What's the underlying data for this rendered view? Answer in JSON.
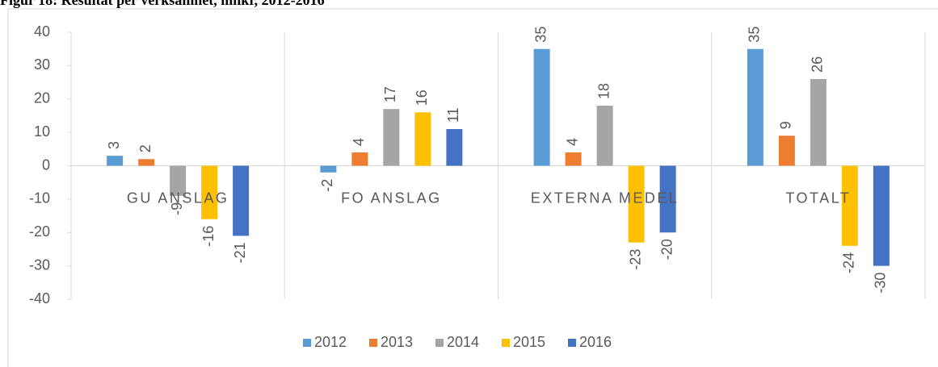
{
  "chart_data": {
    "type": "bar",
    "title": "Figur 18: Resultat per verksamhet, mnkr, 2012-2016",
    "categories": [
      "GU ANSLAG",
      "FO ANSLAG",
      "EXTERNA MEDEL",
      "TOTALT"
    ],
    "series": [
      {
        "name": "2012",
        "color": "#5b9bd5",
        "values": [
          3,
          -2,
          35,
          35
        ]
      },
      {
        "name": "2013",
        "color": "#ed7d31",
        "values": [
          2,
          4,
          4,
          9
        ]
      },
      {
        "name": "2014",
        "color": "#a5a5a5",
        "values": [
          -9,
          17,
          18,
          26
        ]
      },
      {
        "name": "2015",
        "color": "#ffc000",
        "values": [
          -16,
          16,
          -23,
          -24
        ]
      },
      {
        "name": "2016",
        "color": "#4472c4",
        "values": [
          -21,
          11,
          -20,
          -30
        ]
      }
    ],
    "ylim": [
      -40,
      40
    ],
    "yticks": [
      -40,
      -30,
      -20,
      -10,
      0,
      10,
      20,
      30,
      40
    ],
    "legend": "bottom"
  }
}
